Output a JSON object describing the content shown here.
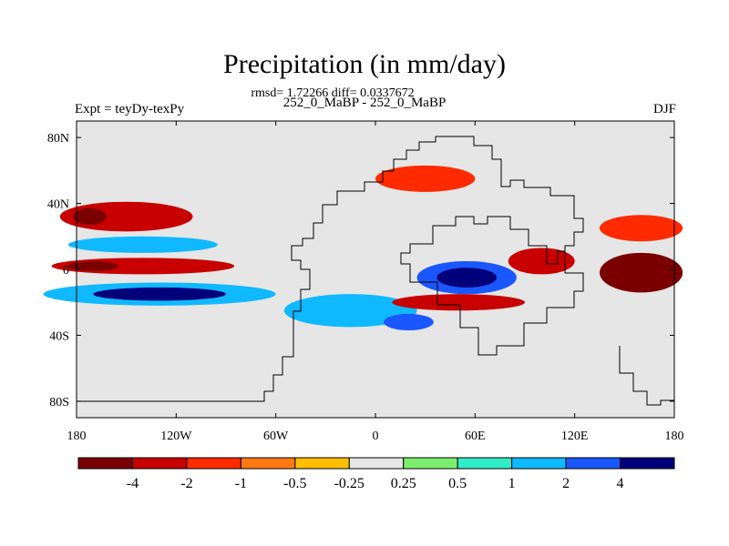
{
  "chart_data": {
    "type": "heatmap",
    "title": "Precipitation (in mm/day)",
    "stats_text": "rmsd= 1.72266 diff= 0.0337672",
    "subtitle": "252_0_MaBP - 252_0_MaBP",
    "left_label": "Expt = teyDy-texPy",
    "right_label": "DJF",
    "xlabel": "",
    "ylabel": "",
    "xlim": [
      -180,
      180
    ],
    "ylim": [
      -90,
      90
    ],
    "x_ticks": [
      {
        "value": -180,
        "label": "180"
      },
      {
        "value": -120,
        "label": "120W"
      },
      {
        "value": -60,
        "label": "60W"
      },
      {
        "value": 0,
        "label": "0"
      },
      {
        "value": 60,
        "label": "60E"
      },
      {
        "value": 120,
        "label": "120E"
      },
      {
        "value": 180,
        "label": "180"
      }
    ],
    "y_ticks": [
      {
        "value": 80,
        "label": "80N"
      },
      {
        "value": 40,
        "label": "40N"
      },
      {
        "value": 0,
        "label": "0"
      },
      {
        "value": -40,
        "label": "40S"
      },
      {
        "value": -80,
        "label": "80S"
      }
    ],
    "colorbar": {
      "colors": [
        "#7a0000",
        "#c80000",
        "#ff2a00",
        "#ff7a12",
        "#ffbe00",
        "#e6e6e6",
        "#7cee6e",
        "#30ecc8",
        "#10b8ff",
        "#1a57ff",
        "#00007a"
      ],
      "levels": [
        {
          "value": -4,
          "label": "-4"
        },
        {
          "value": -2,
          "label": "-2"
        },
        {
          "value": -1,
          "label": "-1"
        },
        {
          "value": -0.5,
          "label": "-0.5"
        },
        {
          "value": -0.25,
          "label": "-0.25"
        },
        {
          "value": 0.25,
          "label": "0.25"
        },
        {
          "value": 0.5,
          "label": "0.5"
        },
        {
          "value": 1,
          "label": "1"
        },
        {
          "value": 2,
          "label": "2"
        },
        {
          "value": 4,
          "label": "4"
        }
      ]
    },
    "anomaly_regions": [
      {
        "name": "n-pacific-dry-band",
        "lon": -150,
        "lat": 32,
        "rlon": 40,
        "rlat": 9,
        "value": -2.5
      },
      {
        "name": "n-pacific-dry-core",
        "lon": -172,
        "lat": 32,
        "rlon": 10,
        "rlat": 5,
        "value": -4.5
      },
      {
        "name": "n-pacific-wet-band",
        "lon": -140,
        "lat": 15,
        "rlon": 45,
        "rlat": 5,
        "value": 1.5
      },
      {
        "name": "eq-pacific-dry-band",
        "lon": -140,
        "lat": 2,
        "rlon": 55,
        "rlat": 5,
        "value": -2.5
      },
      {
        "name": "eq-pacific-dry-core",
        "lon": -170,
        "lat": 2,
        "rlon": 15,
        "rlat": 3,
        "value": -4.5
      },
      {
        "name": "s-pacific-wet-band",
        "lon": -130,
        "lat": -15,
        "rlon": 70,
        "rlat": 7,
        "value": 1.5
      },
      {
        "name": "s-pacific-wet-core",
        "lon": -130,
        "lat": -15,
        "rlon": 40,
        "rlat": 4,
        "value": 5
      },
      {
        "name": "s-atlantic-wet-band",
        "lon": -15,
        "lat": -25,
        "rlon": 40,
        "rlat": 10,
        "value": 1.5
      },
      {
        "name": "s-atlantic-wet-core",
        "lon": 20,
        "lat": -32,
        "rlon": 15,
        "rlat": 5,
        "value": 3
      },
      {
        "name": "n-africa-dry",
        "lon": 30,
        "lat": 55,
        "rlon": 30,
        "rlat": 8,
        "value": -1.5
      },
      {
        "name": "indian-ocean-wet",
        "lon": 55,
        "lat": -5,
        "rlon": 30,
        "rlat": 10,
        "value": 3
      },
      {
        "name": "indian-ocean-wet-core",
        "lon": 55,
        "lat": -5,
        "rlon": 18,
        "rlat": 6,
        "value": 5
      },
      {
        "name": "s-indian-dry",
        "lon": 50,
        "lat": -20,
        "rlon": 40,
        "rlat": 5,
        "value": -2.5
      },
      {
        "name": "e-indian-dry",
        "lon": 100,
        "lat": 5,
        "rlon": 20,
        "rlat": 8,
        "value": -2
      },
      {
        "name": "w-pacific-dry",
        "lon": 160,
        "lat": -2,
        "rlon": 25,
        "rlat": 12,
        "value": -4.5
      },
      {
        "name": "nw-pacific-dry",
        "lon": 160,
        "lat": 25,
        "rlon": 25,
        "rlat": 8,
        "value": -1.5
      }
    ],
    "annotations": [
      "land-sea mask coastline outline"
    ]
  }
}
